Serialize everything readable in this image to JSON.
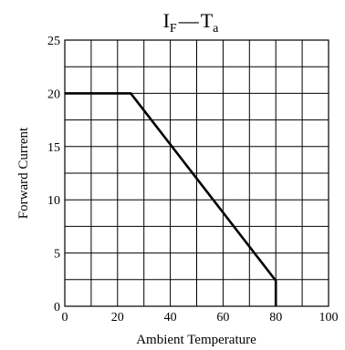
{
  "chart_data": {
    "type": "line",
    "title": {
      "main_letter": "I",
      "main_sub": "F",
      "dash": "—",
      "sec_letter": "T",
      "sec_sub": "a"
    },
    "xlabel": "Ambient Temperature",
    "ylabel": "Forward Current",
    "xlim": [
      0,
      100
    ],
    "ylim": [
      0,
      25
    ],
    "x_ticks": [
      0,
      20,
      40,
      60,
      80,
      100
    ],
    "y_ticks": [
      0,
      5,
      10,
      15,
      20,
      25
    ],
    "x_grid_step": 10,
    "y_grid_step": 2.5,
    "grid": true,
    "series": [
      {
        "x": [
          0,
          25,
          80,
          80
        ],
        "y": [
          20,
          20,
          2.4,
          0
        ]
      }
    ]
  }
}
